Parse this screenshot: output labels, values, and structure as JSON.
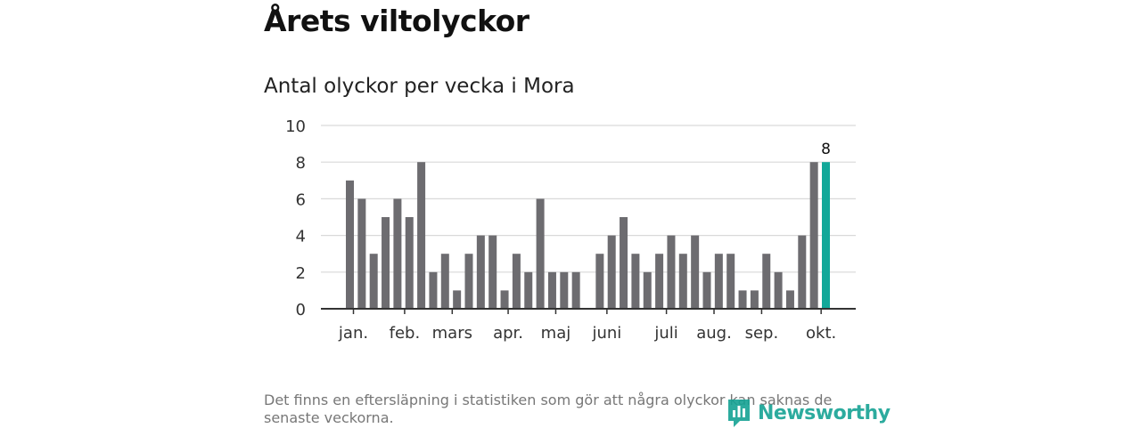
{
  "title": "Årets viltolyckor",
  "subtitle": "Antal olyckor per vecka i Mora",
  "footnote": "Det finns en eftersläpning i statistiken som gör att några olyckor kan saknas de senaste veckorna.",
  "brand": "Newsworthy",
  "colors": {
    "bar": "#6d6c70",
    "highlight": "#12a899",
    "grid": "#d9d9d9",
    "axis": "#333333"
  },
  "chart_data": {
    "type": "bar",
    "title": "Antal olyckor per vecka i Mora",
    "xlabel": "",
    "ylabel": "",
    "ylim": [
      0,
      10
    ],
    "yticks": [
      0,
      2,
      4,
      6,
      8,
      10
    ],
    "grid": true,
    "weeks": [
      1,
      2,
      3,
      4,
      5,
      6,
      7,
      8,
      9,
      10,
      11,
      12,
      13,
      14,
      15,
      16,
      17,
      18,
      19,
      20,
      21,
      22,
      23,
      24,
      25,
      26,
      27,
      28,
      29,
      30,
      31,
      32,
      33,
      34,
      35,
      36,
      37,
      38,
      39,
      40,
      41
    ],
    "values": [
      7,
      6,
      3,
      5,
      6,
      5,
      8,
      2,
      3,
      1,
      3,
      4,
      4,
      1,
      3,
      2,
      6,
      2,
      2,
      2,
      null,
      3,
      4,
      5,
      3,
      2,
      3,
      4,
      3,
      4,
      2,
      3,
      3,
      1,
      1,
      3,
      2,
      1,
      4,
      8,
      8
    ],
    "highlight_index": 40,
    "highlight_label": "8",
    "month_ticks": [
      {
        "label": "jan.",
        "week": 1.3
      },
      {
        "label": "feb.",
        "week": 5.6
      },
      {
        "label": "mars",
        "week": 9.6
      },
      {
        "label": "apr.",
        "week": 14.3
      },
      {
        "label": "maj",
        "week": 18.3
      },
      {
        "label": "juni",
        "week": 22.6
      },
      {
        "label": "juli",
        "week": 27.6
      },
      {
        "label": "aug.",
        "week": 31.6
      },
      {
        "label": "sep.",
        "week": 35.6
      },
      {
        "label": "okt.",
        "week": 40.6
      }
    ]
  }
}
